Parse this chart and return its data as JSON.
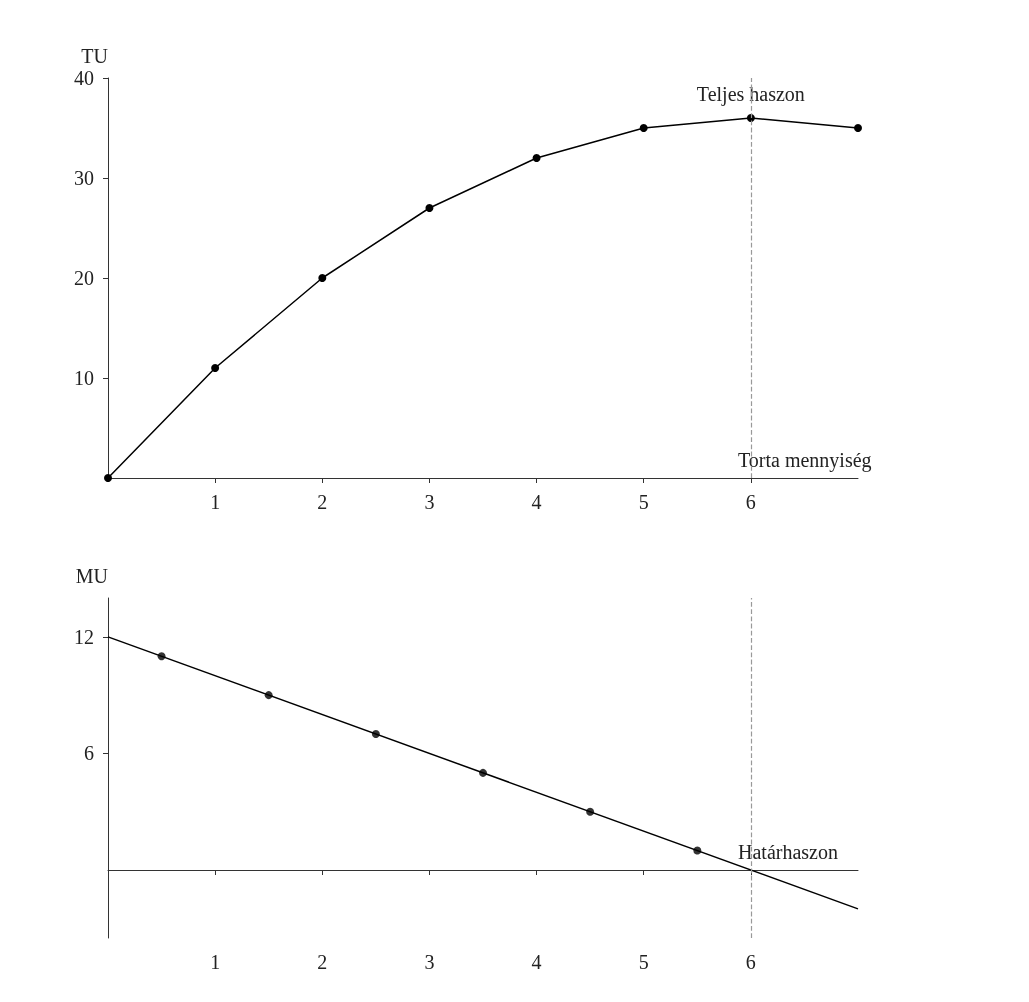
{
  "chart_data": [
    {
      "type": "line",
      "xlabel": "Torta mennyiség",
      "ylabel": "TU",
      "x": [
        0,
        1,
        2,
        3,
        4,
        5,
        6,
        7
      ],
      "values": [
        0,
        11,
        20,
        27,
        32,
        35,
        36,
        35
      ],
      "color": "#000000",
      "xlim": [
        0,
        7
      ],
      "xticks": [
        1,
        2,
        3,
        4,
        5,
        6
      ],
      "ylim": [
        0,
        40
      ],
      "yticks": [
        10,
        20,
        30,
        40
      ],
      "grid": false,
      "marker": "circle",
      "line_style": "solid",
      "annotations": [
        {
          "text": "Teljes haszon",
          "x": 6,
          "y": 36
        }
      ],
      "ref_lines": [
        {
          "axis": "x",
          "value": 6,
          "color": "#999999",
          "line_style": "dashed"
        }
      ]
    },
    {
      "type": "line",
      "xlabel": "Határhaszon",
      "ylabel": "MU",
      "series": [
        {
          "type": "scatter",
          "x": [
            0.5,
            1.5,
            2.5,
            3.5,
            4.5,
            5.5
          ],
          "values": [
            11,
            9,
            7,
            5,
            3,
            1
          ],
          "color": "#000000"
        },
        {
          "x": [
            0,
            7
          ],
          "values": [
            12,
            -2
          ],
          "color": "#000000",
          "marker": "none"
        }
      ],
      "xlim": [
        0,
        7
      ],
      "xticks": [
        1,
        2,
        3,
        4,
        5,
        6
      ],
      "ylim": [
        -3.5,
        14
      ],
      "yticks": [
        6,
        12
      ],
      "grid": false,
      "marker": "circle",
      "line_style": "solid",
      "ref_lines": [
        {
          "axis": "x",
          "value": 6,
          "color": "#999999",
          "line_style": "dashed"
        }
      ]
    }
  ]
}
